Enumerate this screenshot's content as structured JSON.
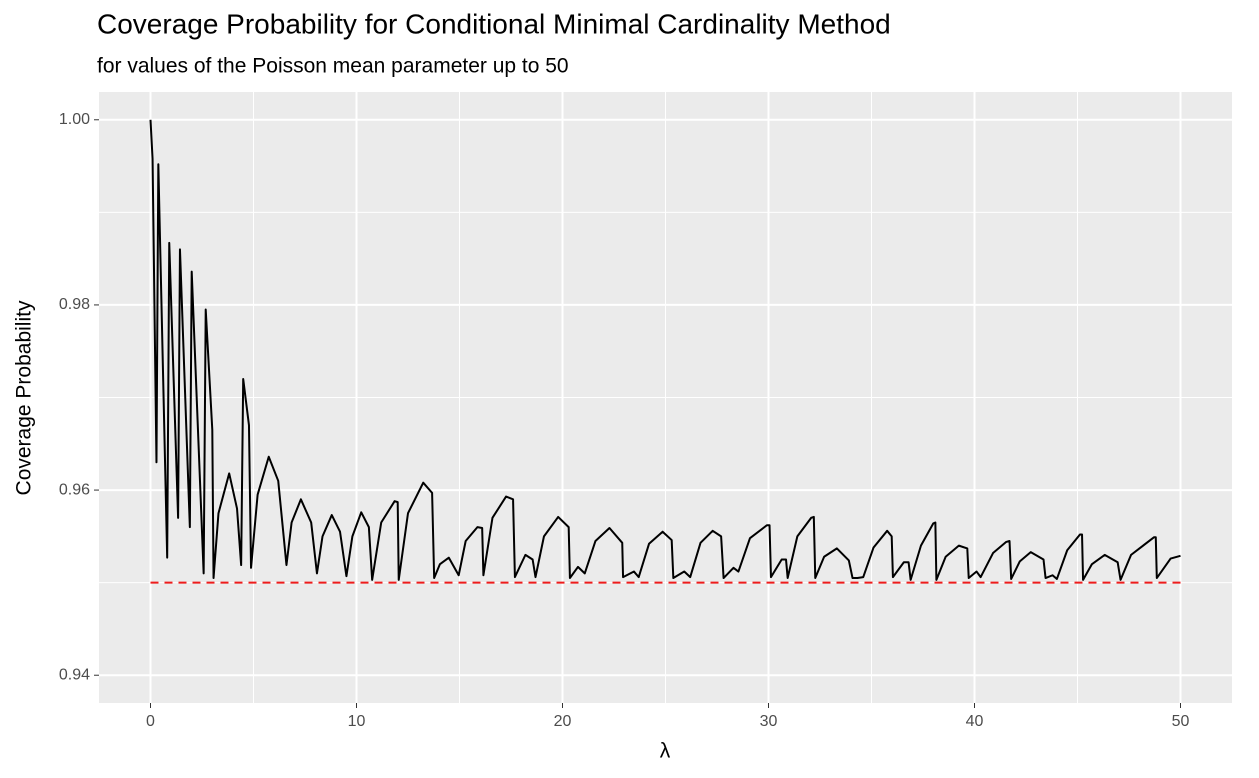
{
  "chart_data": {
    "type": "line",
    "title": "Coverage Probability for Conditional Minimal Cardinality Method",
    "subtitle": "for values of the Poisson mean parameter up to 50",
    "xlabel": "λ",
    "ylabel": "Coverage Probability",
    "xlim": [
      -2.5,
      52.5
    ],
    "ylim": [
      0.937,
      1.003
    ],
    "xticks": [
      0,
      10,
      20,
      30,
      40,
      50
    ],
    "yticks": [
      0.94,
      0.96,
      0.98,
      {
        "value": 1.0,
        "label": "1.00"
      }
    ],
    "x_minor_grid": [
      5,
      15,
      25,
      35,
      45
    ],
    "y_minor_grid": [
      0.95,
      0.97,
      0.99
    ],
    "grid": true,
    "series": [
      {
        "color": "#000000",
        "dashed": false,
        "x": [
          0,
          0.1,
          0.29,
          0.38,
          0.81,
          0.91,
          1.34,
          1.43,
          1.91,
          2.0,
          2.58,
          2.68,
          3.0,
          3.06,
          3.3,
          3.82,
          4.2,
          4.4,
          4.5,
          4.78,
          4.88,
          5.2,
          5.74,
          6.2,
          6.6,
          6.85,
          7.3,
          7.8,
          8.08,
          8.35,
          8.8,
          9.2,
          9.51,
          9.8,
          10.23,
          10.6,
          10.76,
          11.2,
          11.85,
          12.0,
          12.05,
          12.5,
          13.24,
          13.67,
          13.77,
          14.05,
          14.48,
          14.96,
          15.3,
          15.87,
          16.1,
          16.16,
          16.6,
          17.26,
          17.6,
          17.69,
          18.2,
          18.55,
          18.69,
          19.1,
          19.79,
          20.3,
          20.36,
          20.75,
          21.08,
          21.6,
          22.28,
          22.9,
          22.94,
          23.47,
          23.7,
          24.2,
          24.86,
          25.3,
          25.38,
          25.91,
          26.2,
          26.7,
          27.29,
          27.7,
          27.82,
          28.3,
          28.54,
          29.1,
          29.92,
          30.05,
          30.12,
          30.64,
          30.85,
          30.93,
          31.4,
          32.07,
          32.2,
          32.27,
          32.7,
          33.32,
          33.9,
          34.08,
          34.32,
          34.6,
          35.1,
          35.76,
          35.98,
          36.04,
          36.57,
          36.8,
          36.9,
          37.4,
          38.0,
          38.1,
          38.15,
          38.6,
          39.24,
          39.65,
          39.72,
          40.1,
          40.3,
          40.9,
          41.54,
          41.7,
          41.78,
          42.2,
          42.73,
          43.35,
          43.45,
          43.79,
          44.0,
          44.5,
          45.12,
          45.22,
          45.27,
          45.7,
          46.32,
          46.95,
          47.09,
          47.6,
          48.71,
          48.8,
          48.85,
          49.52,
          50
        ],
        "values": [
          1.0,
          0.9958,
          0.963,
          0.9952,
          0.9527,
          0.9867,
          0.957,
          0.986,
          0.956,
          0.9836,
          0.951,
          0.9795,
          0.9665,
          0.9505,
          0.9575,
          0.9618,
          0.958,
          0.9519,
          0.972,
          0.967,
          0.9516,
          0.9595,
          0.9636,
          0.961,
          0.9519,
          0.9565,
          0.959,
          0.9565,
          0.951,
          0.955,
          0.9573,
          0.9555,
          0.9507,
          0.955,
          0.9576,
          0.956,
          0.9503,
          0.9565,
          0.9588,
          0.9587,
          0.9503,
          0.9575,
          0.9608,
          0.9597,
          0.9505,
          0.952,
          0.9527,
          0.9508,
          0.9545,
          0.956,
          0.9559,
          0.9508,
          0.957,
          0.9593,
          0.959,
          0.9506,
          0.953,
          0.9525,
          0.9506,
          0.955,
          0.9571,
          0.956,
          0.9505,
          0.9517,
          0.951,
          0.9545,
          0.9559,
          0.9543,
          0.9506,
          0.9512,
          0.9506,
          0.9542,
          0.9555,
          0.9546,
          0.9505,
          0.9512,
          0.9506,
          0.9543,
          0.9556,
          0.955,
          0.9505,
          0.9516,
          0.9512,
          0.9548,
          0.9562,
          0.9562,
          0.9506,
          0.9525,
          0.9525,
          0.9505,
          0.955,
          0.957,
          0.9571,
          0.9505,
          0.9528,
          0.9537,
          0.9524,
          0.9505,
          0.9505,
          0.9506,
          0.9538,
          0.9556,
          0.955,
          0.9506,
          0.9522,
          0.9522,
          0.9503,
          0.954,
          0.9564,
          0.9565,
          0.9503,
          0.9528,
          0.954,
          0.9537,
          0.9505,
          0.9512,
          0.9506,
          0.9532,
          0.9544,
          0.9545,
          0.9504,
          0.9523,
          0.9533,
          0.9525,
          0.9505,
          0.9508,
          0.9504,
          0.9535,
          0.9552,
          0.9552,
          0.9503,
          0.952,
          0.953,
          0.9522,
          0.9503,
          0.953,
          0.9549,
          0.9549,
          0.9505,
          0.9526,
          0.9529
        ]
      },
      {
        "color": "#ee1c1c",
        "dashed": true,
        "x": [
          0,
          50
        ],
        "values": [
          0.95,
          0.95
        ]
      }
    ]
  }
}
